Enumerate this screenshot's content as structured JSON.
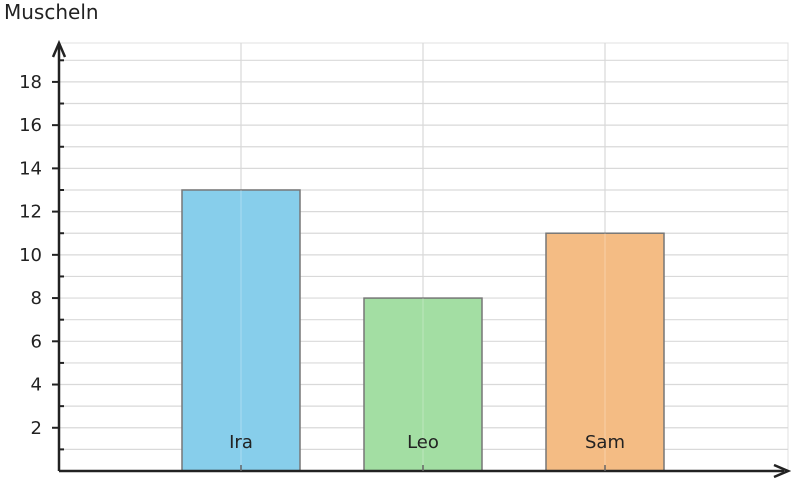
{
  "chart_data": {
    "type": "bar",
    "ylabel": "Muscheln",
    "xlabel": "",
    "categories": [
      "Ira",
      "Leo",
      "Sam"
    ],
    "values": [
      13,
      8,
      11
    ],
    "colors": [
      "#87ceeb",
      "#a3dea3",
      "#f4bc84"
    ],
    "ylim": [
      0,
      19.8
    ],
    "yticks": [
      2,
      4,
      6,
      8,
      10,
      12,
      14,
      16,
      18
    ],
    "grid": true
  }
}
